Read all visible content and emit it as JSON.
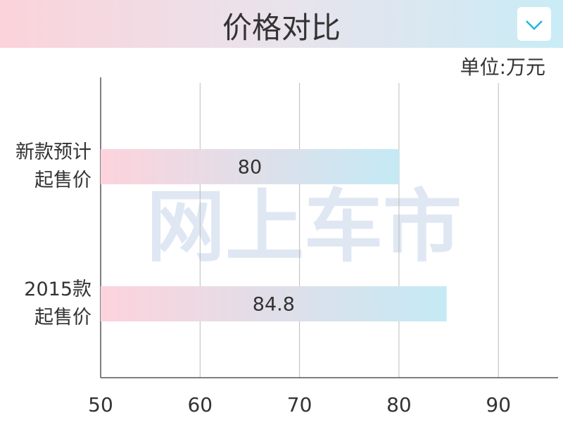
{
  "header": {
    "title": "价格对比"
  },
  "chart_data": {
    "type": "bar",
    "orientation": "horizontal",
    "unit": "单位:万元",
    "watermark": "网上车市",
    "categories": [
      "新款预计\n起售价",
      "2015款\n起售价"
    ],
    "values": [
      80,
      84.8
    ],
    "colors": [
      "#fdd3dc",
      "#c4eaf5"
    ],
    "xlim": [
      50,
      96
    ],
    "xticks": [
      50,
      60,
      70,
      80,
      90
    ],
    "grid": true
  }
}
